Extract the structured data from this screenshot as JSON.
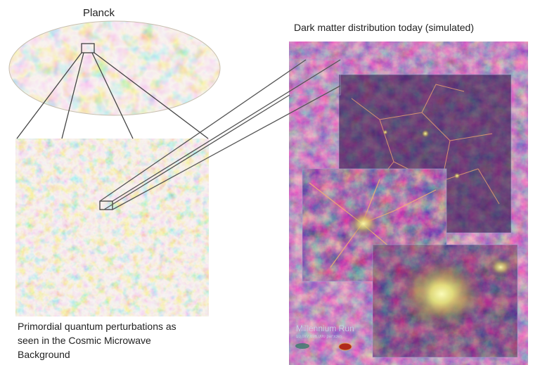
{
  "planck": {
    "title": "Planck"
  },
  "dark_matter": {
    "title": "Dark matter distribution today (simulated)",
    "simulation_name": "Millennium Run",
    "simulation_credit": "10.077.696.000 particles"
  },
  "cmb": {
    "caption_lines": [
      "Primordial quantum perturbations as",
      "seen in the Cosmic Microwave",
      "Background"
    ]
  },
  "colors": {
    "cmb_cold": "#3a6fd0",
    "cmb_neutral": "#e6dcc4",
    "cmb_warm": "#c8702c",
    "dark_matter_bg": "#3a1d5e",
    "filament": "#f0b070",
    "halo_core": "#f4f49a",
    "zoom_line": "#555555"
  }
}
